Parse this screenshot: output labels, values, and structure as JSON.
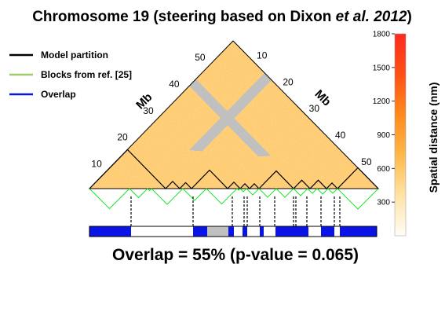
{
  "chart_data": {
    "type": "heatmap",
    "title_main": "Chromosome 19 (steering based on Dixon ",
    "title_italic": "et al. 2012",
    "title_end": ")",
    "axis_unit_left": "Mb",
    "axis_unit_right": "Mb",
    "ticks_left": [
      "10",
      "20",
      "30",
      "40",
      "50"
    ],
    "ticks_right": [
      "10",
      "20",
      "30",
      "40",
      "50"
    ],
    "legend": [
      {
        "label": "Model partition",
        "color": "#000000"
      },
      {
        "label": "Blocks from ref. [25]",
        "color": "#9fca6b"
      },
      {
        "label": "Overlap",
        "color": "#0a14e6"
      }
    ],
    "colorbar": {
      "label": "Spatial distance (nm)",
      "ticks": [
        "300",
        "600",
        "900",
        "1200",
        "1500",
        "1800"
      ],
      "range": [
        0,
        1800
      ],
      "colors": [
        "#fffdf6",
        "#ffe3a6",
        "#ffb84a",
        "#ff8a1c",
        "#ff5014",
        "#ff2a20"
      ]
    },
    "masked_band_color": "#c0c0c0",
    "overlap_text": "Overlap = 55% (p-value = 0.065)",
    "overlap_percent": 55,
    "p_value": 0.065
  }
}
